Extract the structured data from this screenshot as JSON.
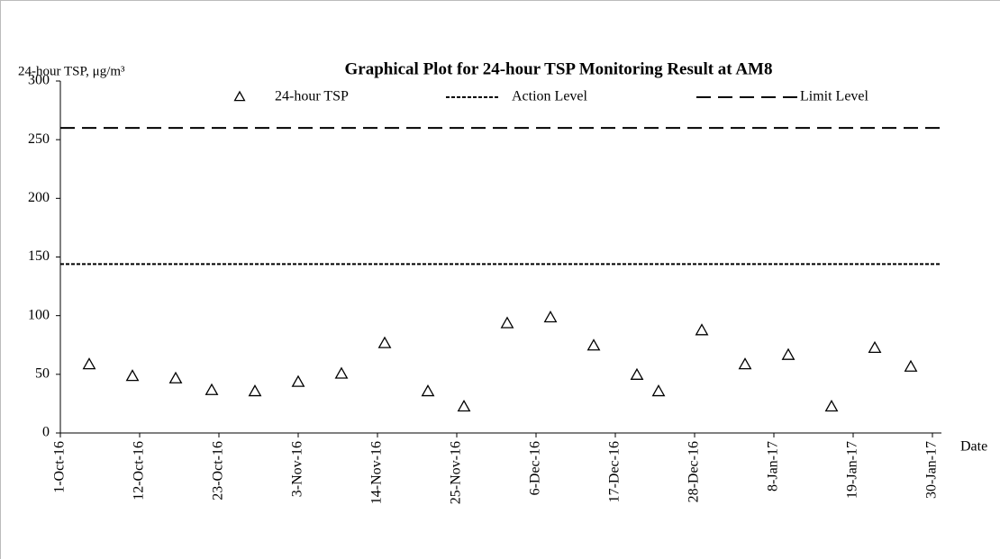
{
  "chart_data": {
    "type": "scatter",
    "title": "Graphical Plot for 24-hour TSP Monitoring Result at AM8",
    "y_label": "24-hour TSP, μg/m³",
    "x_label": "Date",
    "series": [
      {
        "name": "24-hour TSP",
        "color": "#000000",
        "marker": "triangle-open",
        "x": [
          "2016-10-05",
          "2016-10-11",
          "2016-10-17",
          "2016-10-22",
          "2016-10-28",
          "2016-11-03",
          "2016-11-09",
          "2016-11-15",
          "2016-11-21",
          "2016-11-26",
          "2016-12-02",
          "2016-12-08",
          "2016-12-14",
          "2016-12-20",
          "2016-12-23",
          "2016-12-29",
          "2017-01-04",
          "2017-01-10",
          "2017-01-16",
          "2017-01-22",
          "2017-01-27"
        ],
        "values": [
          58,
          48,
          46,
          36,
          35,
          43,
          50,
          76,
          35,
          22,
          93,
          98,
          74,
          49,
          35,
          87,
          58,
          66,
          22,
          72,
          56
        ]
      }
    ],
    "reference_lines": [
      {
        "name": "Action Level",
        "value": 144,
        "color": "#000000",
        "style": "dotted"
      },
      {
        "name": "Limit Level",
        "value": 260,
        "color": "#000000",
        "style": "dashed"
      }
    ],
    "xlim": [
      "2016-10-01",
      "2017-01-30"
    ],
    "xticks": [
      {
        "value": "2016-10-01",
        "label": "1-Oct-16"
      },
      {
        "value": "2016-10-12",
        "label": "12-Oct-16"
      },
      {
        "value": "2016-10-23",
        "label": "23-Oct-16"
      },
      {
        "value": "2016-11-03",
        "label": "3-Nov-16"
      },
      {
        "value": "2016-11-14",
        "label": "14-Nov-16"
      },
      {
        "value": "2016-11-25",
        "label": "25-Nov-16"
      },
      {
        "value": "2016-12-06",
        "label": "6-Dec-16"
      },
      {
        "value": "2016-12-17",
        "label": "17-Dec-16"
      },
      {
        "value": "2016-12-28",
        "label": "28-Dec-16"
      },
      {
        "value": "2017-01-08",
        "label": "8-Jan-17"
      },
      {
        "value": "2017-01-19",
        "label": "19-Jan-17"
      },
      {
        "value": "2017-01-30",
        "label": "30-Jan-17"
      }
    ],
    "ylim": [
      0,
      300
    ],
    "yticks": [
      0,
      50,
      100,
      150,
      200,
      250,
      300
    ],
    "grid": false,
    "legend": "top"
  }
}
